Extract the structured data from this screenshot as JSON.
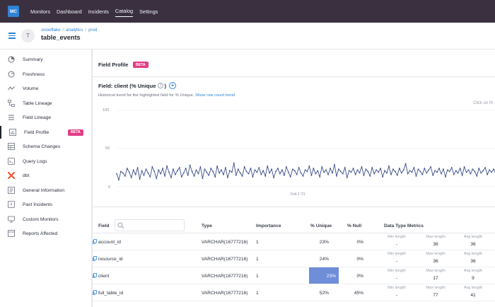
{
  "topbar": {
    "logo": "MC",
    "nav": [
      "Monitors",
      "Dashboard",
      "Incidents",
      "Catalog",
      "Settings"
    ],
    "active": "Catalog"
  },
  "header": {
    "avatar_letter": "T",
    "breadcrumb": [
      "snowflake",
      "analytics",
      "prod"
    ],
    "title": "table_events"
  },
  "sidebar": {
    "items": [
      {
        "label": "Summary",
        "icon": "summary-icon"
      },
      {
        "label": "Freshness",
        "icon": "gauge-icon"
      },
      {
        "label": "Volume",
        "icon": "trend-icon"
      },
      {
        "label": "Table Lineage",
        "icon": "lineage-icon"
      },
      {
        "label": "Field Lineage",
        "icon": "list-icon"
      },
      {
        "label": "Field Profile",
        "icon": "chart-icon",
        "badge": "BETA",
        "active": true
      },
      {
        "label": "Schema Changes",
        "icon": "schema-icon"
      },
      {
        "label": "Query Logs",
        "icon": "log-icon"
      },
      {
        "label": "dbt",
        "icon": "dbt-icon"
      },
      {
        "label": "General Information",
        "icon": "info-list-icon"
      },
      {
        "label": "Past Incidents",
        "icon": "incident-icon"
      },
      {
        "label": "Custom Monitors",
        "icon": "monitor-icon"
      },
      {
        "label": "Reports Affected",
        "icon": "report-icon"
      }
    ]
  },
  "profile": {
    "title": "Field Profile",
    "badge": "BETA",
    "field_label": "Field: client (% Unique",
    "info_glyph": "i",
    "add_glyph": "+",
    "hint_prefix": "Historical trend for the highlighted field for % Unique.",
    "hint_link": "Show row count trend",
    "click_note": "Click on th"
  },
  "chart_data": {
    "type": "line",
    "title": "",
    "xlabel": "",
    "ylabel": "",
    "ylim": [
      0,
      100
    ],
    "y_ticks": [
      0,
      50,
      100
    ],
    "x_tick_labels": [
      "Feb 1 '21"
    ],
    "colors": {
      "line": "#3d4f8a"
    },
    "series": [
      {
        "values": [
          17,
          9,
          20,
          18,
          14,
          24,
          19,
          12,
          22,
          16,
          25,
          10,
          21,
          15,
          23,
          18,
          13,
          26,
          20,
          11,
          22,
          17,
          24,
          14,
          27,
          19,
          12,
          23,
          16,
          21,
          25,
          13,
          18,
          24,
          15,
          28,
          20,
          14,
          22,
          17,
          26,
          11,
          23,
          19,
          15,
          24,
          20,
          13,
          27,
          18,
          22,
          16,
          25,
          12,
          21,
          19,
          31,
          15,
          23,
          18,
          14,
          26,
          20,
          17,
          24,
          13,
          22,
          19,
          25,
          16,
          21,
          14,
          27,
          18,
          23,
          12,
          20,
          24,
          17,
          22,
          15,
          26,
          19,
          13,
          23,
          21,
          16,
          25,
          18,
          14,
          22,
          20,
          27,
          15,
          24,
          17,
          21,
          13,
          26,
          19,
          22,
          16,
          24,
          18,
          29,
          14,
          23,
          20,
          17,
          25,
          12,
          21,
          19,
          24,
          16,
          22,
          18,
          26,
          15,
          23,
          20,
          14,
          25,
          17,
          22,
          19,
          24,
          13,
          21,
          18,
          27,
          16,
          23,
          20,
          15,
          24,
          18,
          22,
          30,
          17,
          21,
          19,
          25,
          14,
          23,
          20,
          16,
          24,
          18,
          22,
          26,
          15,
          21,
          19,
          24,
          17,
          23,
          13,
          22,
          20,
          25,
          16,
          21,
          18,
          24,
          15,
          26,
          19,
          22,
          17,
          23,
          20,
          14,
          24,
          18,
          21,
          25,
          16,
          22,
          19,
          23,
          17
        ]
      }
    ]
  },
  "table": {
    "headers": {
      "field": "Field",
      "type": "Type",
      "importance": "Importance",
      "unique": "% Unique",
      "null": "% Null",
      "metrics": "Data Type Metrics"
    },
    "metric_labels": [
      "Min length",
      "Max length",
      "Avg length"
    ],
    "rows": [
      {
        "field": "account_id",
        "type": "VARCHAR(16777216)",
        "importance": "1",
        "unique": "23%",
        "null": "0%",
        "min": "-",
        "max": "36",
        "avg": "36"
      },
      {
        "field": "resource_id",
        "type": "VARCHAR(16777216)",
        "importance": "1",
        "unique": "24%",
        "null": "0%",
        "min": "-",
        "max": "36",
        "avg": "36"
      },
      {
        "field": "client",
        "type": "VARCHAR(16777216)",
        "importance": "1",
        "unique": "23%",
        "null": "0%",
        "min": "-",
        "max": "17",
        "avg": "9",
        "highlight": true
      },
      {
        "field": "full_table_id",
        "type": "VARCHAR(16777216)",
        "importance": "1",
        "unique": "52%",
        "null": "45%",
        "min": "-",
        "max": "77",
        "avg": "41"
      }
    ]
  }
}
